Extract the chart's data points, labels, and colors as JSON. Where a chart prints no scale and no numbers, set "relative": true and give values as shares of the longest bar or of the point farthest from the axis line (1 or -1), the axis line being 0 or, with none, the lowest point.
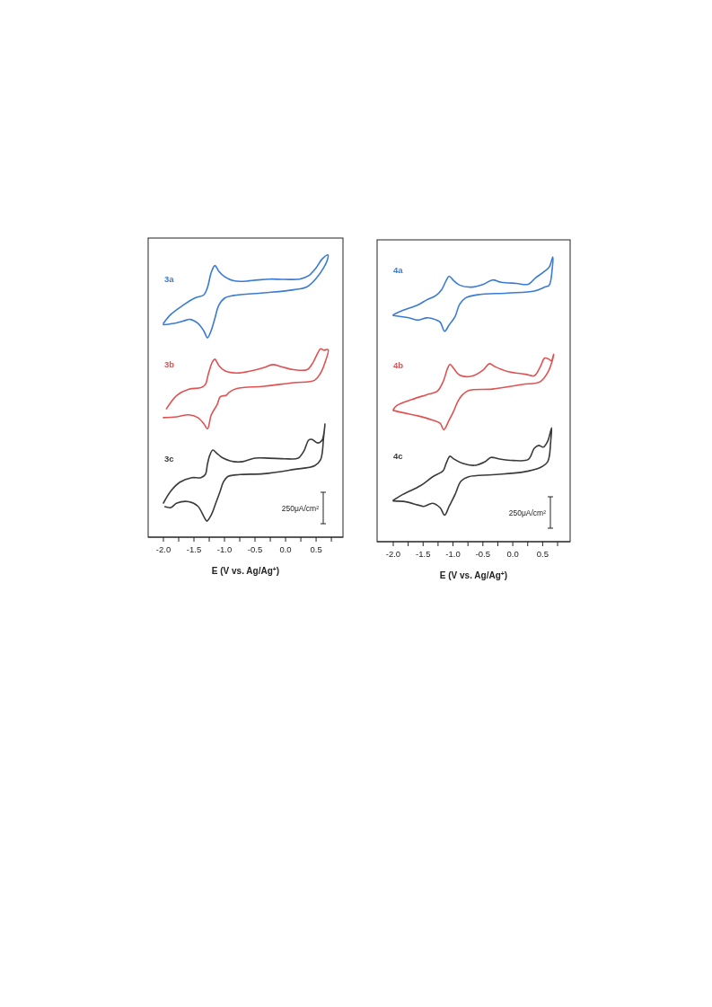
{
  "chart_data": [
    {
      "type": "line",
      "relative": true,
      "xlabel": "E (V vs. Ag/Ag$^{+}$)",
      "tick_labels": "x",
      "xlim": [
        -2.25,
        0.94
      ],
      "xticks": [
        {
          "value": -2,
          "label": "-2.0"
        },
        {
          "value": -1.75,
          "label": null
        },
        {
          "value": -1.5,
          "label": "-1.5"
        },
        {
          "value": -1.25,
          "label": null
        },
        {
          "value": -1,
          "label": "-1.0"
        },
        {
          "value": -0.75,
          "label": null
        },
        {
          "value": -0.5,
          "label": "-0.5"
        },
        {
          "value": -0.25,
          "label": null
        },
        {
          "value": 0,
          "label": "0.0"
        },
        {
          "value": 0.25,
          "label": null
        },
        {
          "value": 0.5,
          "label": "0.5"
        },
        {
          "value": 0.75,
          "label": null
        }
      ],
      "annotations": [
        "250μA/cm²"
      ],
      "series": [
        {
          "name": "3a",
          "color": "#3a7bd5",
          "x": [
            -2.0,
            -1.877,
            -1.681,
            -1.485,
            -1.338,
            -1.279,
            -1.216,
            -1.157,
            -1.093,
            -0.995,
            -0.848,
            -0.701,
            -0.456,
            -0.26,
            -0.015,
            0.23,
            0.377,
            0.5,
            0.598,
            0.696,
            0.681,
            0.623,
            0.5,
            0.353,
            0.132,
            -0.358,
            -0.848,
            -0.995,
            -1.093,
            -1.167,
            -1.23,
            -1.279,
            -1.338,
            -1.436,
            -1.559,
            -1.681,
            -1.828,
            -2.0
          ],
          "values": [
            0.758,
            0.79,
            0.822,
            0.848,
            0.859,
            0.885,
            0.939,
            0.963,
            0.943,
            0.923,
            0.909,
            0.907,
            0.912,
            0.915,
            0.914,
            0.915,
            0.927,
            0.955,
            0.986,
            1.0,
            0.981,
            0.955,
            0.917,
            0.888,
            0.877,
            0.866,
            0.857,
            0.848,
            0.822,
            0.768,
            0.726,
            0.707,
            0.731,
            0.758,
            0.772,
            0.766,
            0.758,
            0.753
          ]
        },
        {
          "name": "3b",
          "color": "#e05252",
          "x": [
            -1.951,
            -1.779,
            -1.583,
            -1.387,
            -1.314,
            -1.265,
            -1.201,
            -1.157,
            -1.093,
            -0.995,
            -0.799,
            -0.554,
            -0.358,
            -0.211,
            -0.064,
            0.132,
            0.353,
            0.451,
            0.525,
            0.574,
            0.623,
            0.696,
            0.647,
            0.574,
            0.475,
            0.132,
            -0.358,
            -0.799,
            -0.922,
            -0.971,
            -1.069,
            -1.118,
            -1.216,
            -1.279,
            -1.338,
            -1.436,
            -1.583,
            -1.779,
            -2.0
          ],
          "values": [
            0.455,
            0.503,
            0.525,
            0.53,
            0.541,
            0.578,
            0.62,
            0.631,
            0.609,
            0.59,
            0.582,
            0.59,
            0.601,
            0.612,
            0.604,
            0.594,
            0.594,
            0.62,
            0.652,
            0.668,
            0.663,
            0.665,
            0.62,
            0.582,
            0.556,
            0.548,
            0.535,
            0.527,
            0.514,
            0.503,
            0.498,
            0.471,
            0.434,
            0.384,
            0.402,
            0.424,
            0.434,
            0.427,
            0.424
          ]
        },
        {
          "name": "3c",
          "color": "#3a3a3a",
          "x": [
            -2.0,
            -1.877,
            -1.73,
            -1.534,
            -1.387,
            -1.314,
            -1.279,
            -1.24,
            -1.191,
            -1.118,
            -1.02,
            -0.848,
            -0.701,
            -0.505,
            -0.26,
            -0.015,
            0.206,
            0.304,
            0.377,
            0.426,
            0.525,
            0.598,
            0.647,
            0.623,
            0.574,
            0.475,
            0.132,
            -0.358,
            -0.75,
            -0.946,
            -1.02,
            -1.069,
            -1.142,
            -1.216,
            -1.289,
            -1.338,
            -1.436,
            -1.583,
            -1.779,
            -1.877,
            -1.975
          ],
          "values": [
            0.121,
            0.164,
            0.195,
            0.211,
            0.211,
            0.222,
            0.259,
            0.291,
            0.309,
            0.296,
            0.28,
            0.268,
            0.268,
            0.28,
            0.28,
            0.278,
            0.28,
            0.307,
            0.344,
            0.347,
            0.334,
            0.344,
            0.402,
            0.354,
            0.275,
            0.253,
            0.24,
            0.225,
            0.222,
            0.215,
            0.195,
            0.164,
            0.121,
            0.079,
            0.057,
            0.073,
            0.11,
            0.126,
            0.121,
            0.105,
            0.108
          ]
        }
      ]
    },
    {
      "type": "line",
      "relative": true,
      "xlabel": "E (V vs. Ag/Ag$^{+}$)",
      "tick_labels": "x",
      "xlim": [
        -2.27,
        0.96
      ],
      "xticks": [
        {
          "value": -2,
          "label": "-2.0"
        },
        {
          "value": -1.75,
          "label": null
        },
        {
          "value": -1.5,
          "label": "-1.5"
        },
        {
          "value": -1.25,
          "label": null
        },
        {
          "value": -1,
          "label": "-1.0"
        },
        {
          "value": -0.75,
          "label": null
        },
        {
          "value": -0.5,
          "label": "-0.5"
        },
        {
          "value": -0.25,
          "label": null
        },
        {
          "value": 0,
          "label": "0.0"
        },
        {
          "value": 0.25,
          "label": null
        },
        {
          "value": 0.5,
          "label": "0.5"
        },
        {
          "value": 0.75,
          "label": null
        }
      ],
      "annotations": [
        "250μA/cm²"
      ],
      "series": [
        {
          "name": "4a",
          "color": "#3a7bd5",
          "x": [
            -2.0,
            -1.84,
            -1.59,
            -1.44,
            -1.29,
            -1.19,
            -1.115,
            -1.065,
            -0.99,
            -0.89,
            -0.69,
            -0.49,
            -0.34,
            -0.19,
            0.06,
            0.26,
            0.385,
            0.51,
            0.61,
            0.67,
            0.66,
            0.61,
            0.535,
            0.36,
            -0.09,
            -0.59,
            -0.79,
            -0.89,
            -0.965,
            -1.065,
            -1.14,
            -1.215,
            -1.34,
            -1.44,
            -1.59,
            -1.74,
            -2.0
          ],
          "values": [
            0.797,
            0.812,
            0.831,
            0.849,
            0.864,
            0.885,
            0.917,
            0.932,
            0.917,
            0.901,
            0.894,
            0.904,
            0.919,
            0.911,
            0.907,
            0.904,
            0.927,
            0.946,
            0.964,
            1.0,
            0.958,
            0.901,
            0.894,
            0.88,
            0.873,
            0.867,
            0.856,
            0.833,
            0.791,
            0.761,
            0.739,
            0.771,
            0.783,
            0.786,
            0.778,
            0.786,
            0.794
          ]
        },
        {
          "name": "4b",
          "color": "#e05252",
          "x": [
            -2.0,
            -1.94,
            -1.69,
            -1.44,
            -1.265,
            -1.165,
            -1.09,
            -1.05,
            -0.99,
            -0.89,
            -0.69,
            -0.49,
            -0.39,
            -0.29,
            -0.09,
            0.21,
            0.36,
            0.46,
            0.535,
            0.61,
            0.645,
            0.685,
            0.66,
            0.585,
            0.46,
            0.16,
            -0.34,
            -0.74,
            -0.84,
            -0.915,
            -0.99,
            -1.065,
            -1.155,
            -1.215,
            -1.34,
            -1.59,
            -1.84,
            -2.0
          ],
          "values": [
            0.463,
            0.478,
            0.499,
            0.516,
            0.528,
            0.562,
            0.609,
            0.623,
            0.609,
            0.585,
            0.581,
            0.604,
            0.625,
            0.614,
            0.598,
            0.588,
            0.583,
            0.614,
            0.645,
            0.64,
            0.635,
            0.658,
            0.635,
            0.594,
            0.562,
            0.552,
            0.536,
            0.531,
            0.516,
            0.494,
            0.458,
            0.427,
            0.393,
            0.416,
            0.427,
            0.442,
            0.453,
            0.461
          ]
        },
        {
          "name": "4c",
          "color": "#3a3a3a",
          "x": [
            -2.0,
            -1.84,
            -1.54,
            -1.34,
            -1.165,
            -1.115,
            -1.05,
            -0.99,
            -0.84,
            -0.64,
            -0.465,
            -0.365,
            -0.24,
            0.01,
            0.26,
            0.36,
            0.435,
            0.51,
            0.585,
            0.65,
            0.635,
            0.585,
            0.46,
            0.16,
            -0.34,
            -0.74,
            -0.865,
            -0.965,
            -1.065,
            -1.14,
            -1.215,
            -1.34,
            -1.49,
            -1.59,
            -1.79,
            -2.0
          ],
          "values": [
            0.145,
            0.166,
            0.197,
            0.228,
            0.249,
            0.275,
            0.3,
            0.291,
            0.275,
            0.268,
            0.281,
            0.296,
            0.291,
            0.285,
            0.289,
            0.328,
            0.338,
            0.332,
            0.353,
            0.4,
            0.353,
            0.281,
            0.26,
            0.244,
            0.235,
            0.228,
            0.213,
            0.166,
            0.124,
            0.093,
            0.119,
            0.135,
            0.124,
            0.129,
            0.14,
            0.143
          ]
        }
      ]
    }
  ]
}
